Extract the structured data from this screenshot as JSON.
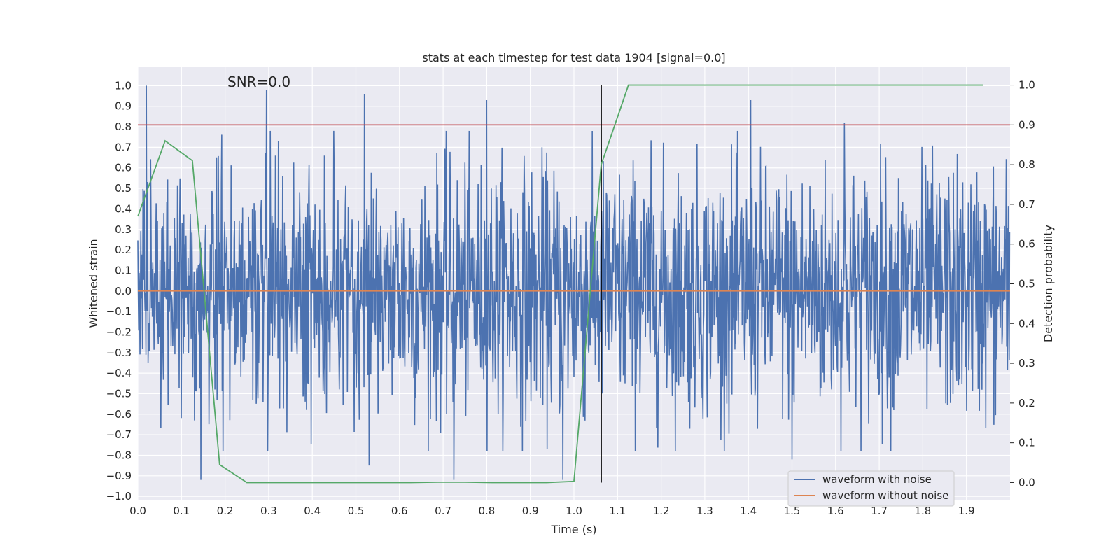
{
  "chart_data": {
    "type": "line",
    "title": "stats at each timestep for test data 1904 [signal=0.0]",
    "annotation": "SNR=0.0",
    "xlabel": "Time (s)",
    "ylabel": "Whitened strain",
    "y2label": "Detection probability",
    "xlim": [
      0.0,
      2.0
    ],
    "ylim": [
      -1.02,
      1.09
    ],
    "y2lim": [
      -0.045,
      1.045
    ],
    "x_ticks": [
      "0.0",
      "0.1",
      "0.2",
      "0.3",
      "0.4",
      "0.5",
      "0.6",
      "0.7",
      "0.8",
      "0.9",
      "1.0",
      "1.1",
      "1.2",
      "1.3",
      "1.4",
      "1.5",
      "1.6",
      "1.7",
      "1.8",
      "1.9"
    ],
    "y_ticks": [
      "1.0",
      "0.9",
      "0.8",
      "0.7",
      "0.6",
      "0.5",
      "0.4",
      "0.3",
      "0.2",
      "0.1",
      "0.0",
      "−0.1",
      "−0.2",
      "−0.3",
      "−0.4",
      "−0.5",
      "−0.6",
      "−0.7",
      "−0.8",
      "−0.9",
      "−1.0"
    ],
    "y2_ticks": [
      "1.0",
      "0.9",
      "0.8",
      "0.7",
      "0.6",
      "0.5",
      "0.4",
      "0.3",
      "0.2",
      "0.1",
      "0.0"
    ],
    "noise_series": {
      "name": "waveform with noise",
      "color": "#4c72b0",
      "samples": 2048,
      "duration": 2.0,
      "seed": 1904,
      "std": 0.3,
      "peaks": [
        {
          "x": 0.02,
          "y": 1.0
        },
        {
          "x": 0.145,
          "y": -0.92
        },
        {
          "x": 0.295,
          "y": 0.98
        },
        {
          "x": 0.52,
          "y": 0.96
        },
        {
          "x": 0.53,
          "y": -0.85
        },
        {
          "x": 0.725,
          "y": -0.92
        },
        {
          "x": 0.8,
          "y": 0.93
        },
        {
          "x": 0.975,
          "y": -0.92
        },
        {
          "x": 1.405,
          "y": 0.93
        },
        {
          "x": 1.5,
          "y": -0.82
        },
        {
          "x": 1.62,
          "y": 0.82
        }
      ]
    },
    "clean_series": {
      "name": "waveform without noise",
      "color": "#dd8452",
      "x": [
        0.0,
        2.0
      ],
      "y": [
        0.0,
        0.0
      ]
    },
    "probability_series": {
      "name": "Detection probability",
      "color": "#55a868",
      "x": [
        0.0,
        0.0625,
        0.125,
        0.1875,
        0.25,
        0.3125,
        0.375,
        0.4375,
        0.5,
        0.5625,
        0.625,
        0.6875,
        0.75,
        0.8125,
        0.875,
        0.9375,
        1.0,
        1.0625,
        1.125,
        1.1875,
        1.25,
        1.3125,
        1.375,
        1.4375,
        1.5,
        1.5625,
        1.625,
        1.6875,
        1.75,
        1.8125,
        1.875,
        1.9375
      ],
      "y": [
        0.67,
        0.86,
        0.81,
        0.045,
        0.0,
        0.0,
        0.0,
        0.0,
        0.0,
        0.0,
        0.0,
        0.001,
        0.001,
        0.0,
        0.0,
        0.0,
        0.003,
        0.8,
        1.0,
        1.0,
        1.0,
        1.0,
        1.0,
        1.0,
        1.0,
        1.0,
        1.0,
        1.0,
        1.0,
        1.0,
        1.0,
        1.0
      ]
    },
    "threshold": {
      "value": 0.9,
      "axis": "y2",
      "color": "#c44e52"
    },
    "marker_vertical": {
      "x": 1.0625,
      "y2_range": [
        0.0,
        1.0
      ],
      "color": "#000000"
    },
    "legend": {
      "placement": "lower-right",
      "entries": [
        {
          "label": "waveform with noise",
          "color": "#4c72b0"
        },
        {
          "label": "waveform without noise",
          "color": "#dd8452"
        }
      ]
    },
    "grid": true
  }
}
